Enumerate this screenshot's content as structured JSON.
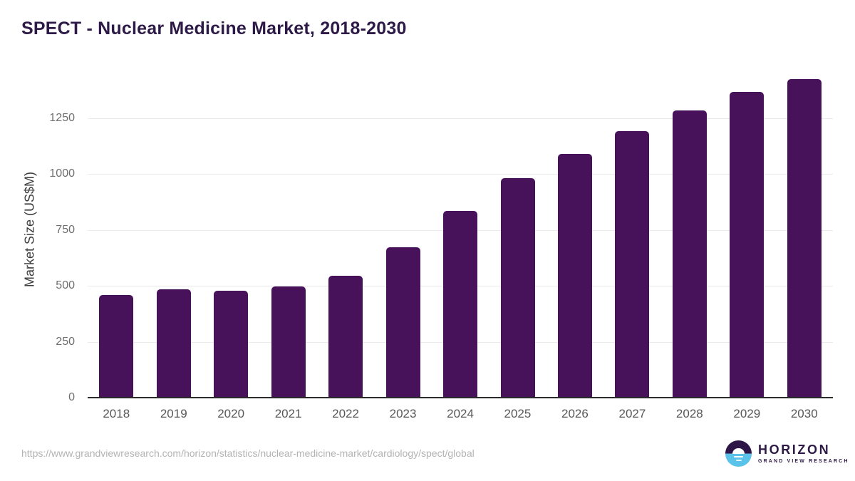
{
  "chart": {
    "title": "SPECT - Nuclear Medicine Market, 2018-2030"
  },
  "chart_data": {
    "type": "bar",
    "title": "SPECT - Nuclear Medicine Market, 2018-2030",
    "categories": [
      "2018",
      "2019",
      "2020",
      "2021",
      "2022",
      "2023",
      "2024",
      "2025",
      "2026",
      "2027",
      "2028",
      "2029",
      "2030"
    ],
    "values": [
      460,
      486,
      480,
      497,
      545,
      674,
      836,
      983,
      1091,
      1193,
      1284,
      1369,
      1424
    ],
    "xlabel": "",
    "ylabel": "Market Size (US$M)",
    "yticks": [
      0,
      250,
      500,
      750,
      1000,
      1250
    ],
    "ylim": [
      0,
      1450
    ],
    "grid": true,
    "legend": "none",
    "bar_color": "#47125A"
  },
  "footer": {
    "url": "https://www.grandviewresearch.com/horizon/statistics/nuclear-medicine-market/cardiology/spect/global",
    "logo": {
      "name": "HORIZON",
      "sub": "GRAND VIEW RESEARCH",
      "icon": "horizon-sun-icon",
      "purple": "#2E1547",
      "blue": "#5BC3EA"
    }
  },
  "colors": {
    "bar": "#47125A",
    "title": "#2E1A47",
    "axis_line": "#2B2B2B",
    "gridline": "#EAEAEA",
    "ytick_text": "#6E6E6E",
    "xtick_text": "#575757",
    "url_text": "#B3B3B3",
    "background": "#FFFFFF"
  }
}
